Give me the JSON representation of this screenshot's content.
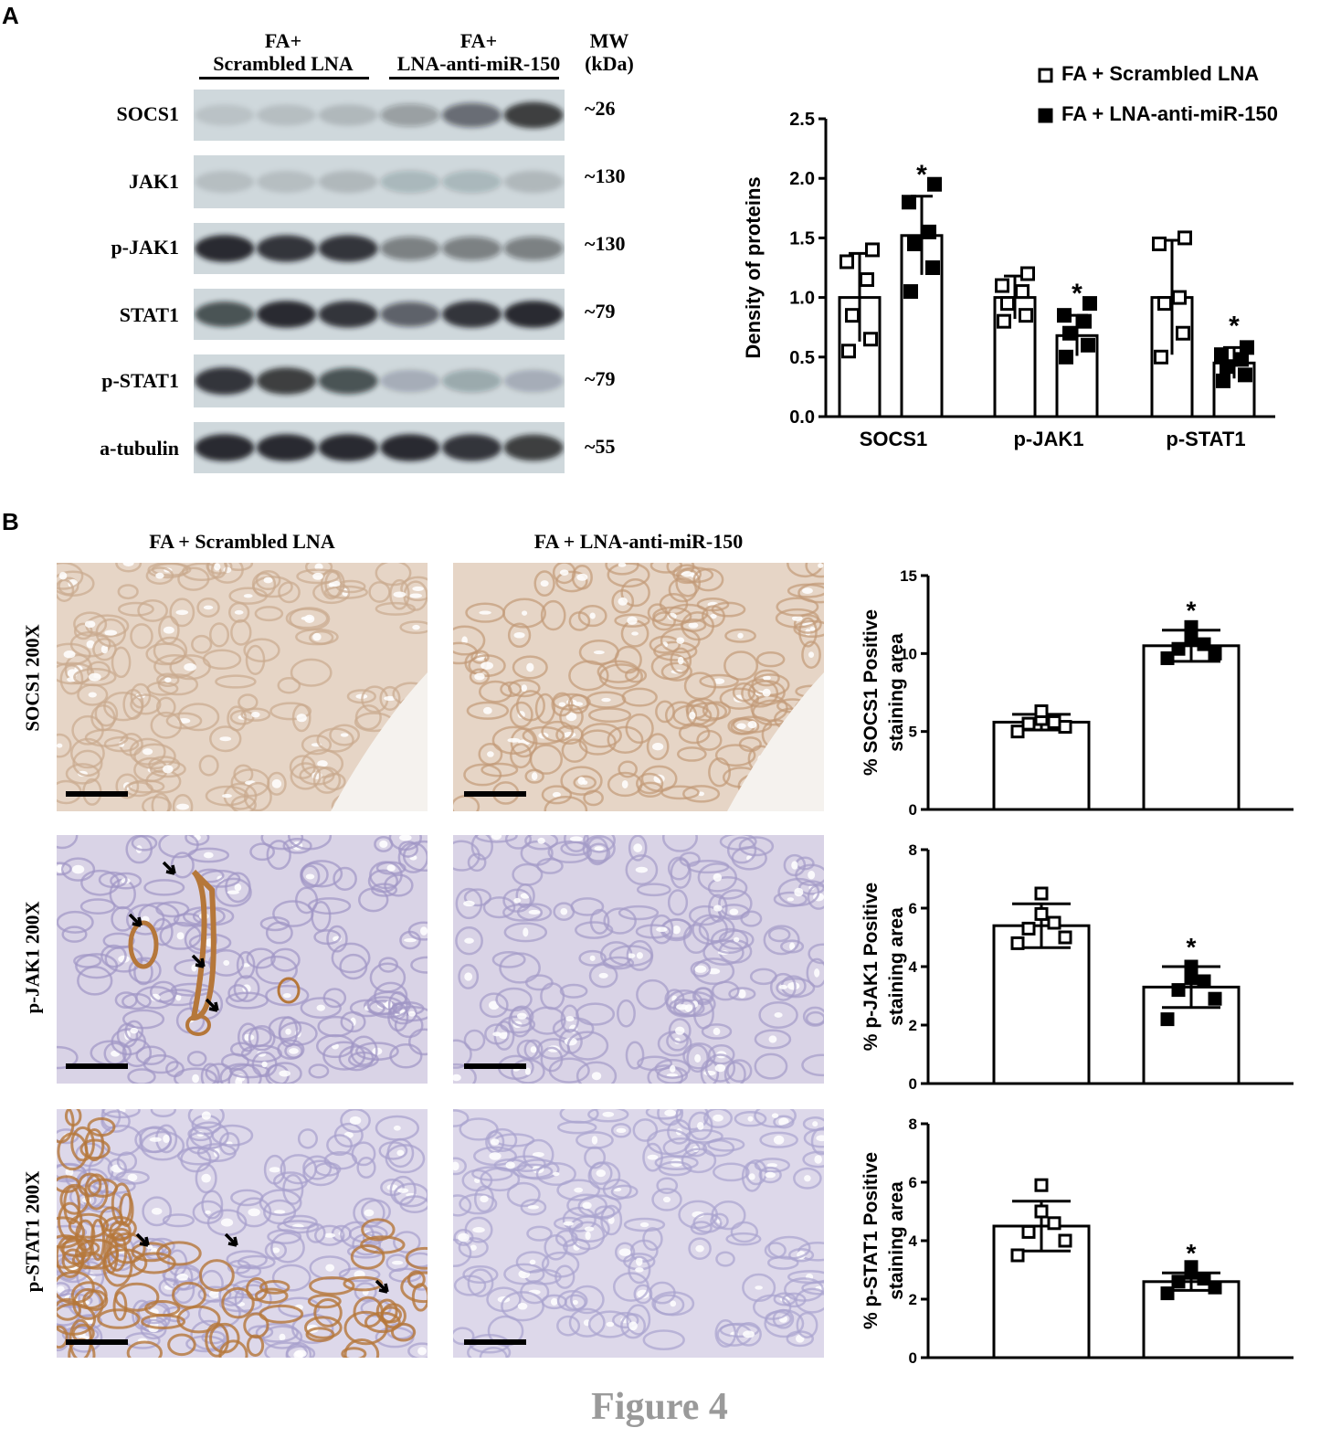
{
  "panel_a": {
    "letter": "A",
    "group1_line1": "FA+",
    "group1_line2": "Scrambled LNA",
    "group2_line1": "FA+",
    "group2_line2": "LNA-anti-miR-150",
    "mw_line1": "MW",
    "mw_line2": "(kDa)",
    "bands": [
      {
        "label": "SOCS1",
        "mw": "~26"
      },
      {
        "label": "JAK1",
        "mw": "~130"
      },
      {
        "label": "p-JAK1",
        "mw": "~130"
      },
      {
        "label": "STAT1",
        "mw": "~79"
      },
      {
        "label": "p-STAT1",
        "mw": "~79"
      },
      {
        "label": "a-tubulin",
        "mw": "~55"
      }
    ],
    "lane_intensity": [
      [
        0.1,
        0.12,
        0.15,
        0.3,
        0.55,
        0.8
      ],
      [
        0.12,
        0.12,
        0.15,
        0.18,
        0.18,
        0.15
      ],
      [
        0.9,
        0.85,
        0.85,
        0.45,
        0.45,
        0.45
      ],
      [
        0.7,
        0.9,
        0.85,
        0.6,
        0.85,
        0.9
      ],
      [
        0.85,
        0.8,
        0.7,
        0.2,
        0.25,
        0.2
      ],
      [
        0.9,
        0.9,
        0.9,
        0.9,
        0.85,
        0.8
      ]
    ]
  },
  "chart_a": {
    "type": "bar",
    "ylabel": "Density of proteins",
    "ylim": [
      0,
      2.5
    ],
    "yticks": [
      "0.0",
      "0.5",
      "1.0",
      "1.5",
      "2.0",
      "2.5"
    ],
    "categories": [
      "SOCS1",
      "p-JAK1",
      "p-STAT1"
    ],
    "legend": [
      "FA + Scrambled LNA",
      "FA + LNA-anti-miR-150"
    ],
    "series": [
      {
        "name": "FA + Scrambled LNA",
        "fill": "open",
        "values": [
          1.0,
          1.0,
          1.0
        ],
        "errors": [
          0.37,
          0.18,
          0.48
        ],
        "points": [
          [
            0.55,
            0.65,
            0.85,
            1.15,
            1.3,
            1.4
          ],
          [
            0.8,
            0.85,
            0.95,
            1.05,
            1.1,
            1.2
          ],
          [
            0.5,
            0.7,
            0.95,
            1.0,
            1.45,
            1.5
          ]
        ]
      },
      {
        "name": "FA + LNA-anti-miR-150",
        "fill": "solid",
        "values": [
          1.52,
          0.68,
          0.45
        ],
        "errors": [
          0.33,
          0.17,
          0.13
        ],
        "points": [
          [
            1.05,
            1.25,
            1.45,
            1.55,
            1.8,
            1.95
          ],
          [
            0.5,
            0.6,
            0.7,
            0.8,
            0.85,
            0.95
          ],
          [
            0.3,
            0.35,
            0.42,
            0.48,
            0.52,
            0.58
          ]
        ]
      }
    ],
    "significance": [
      "*",
      "*",
      "*"
    ]
  },
  "panel_b": {
    "letter": "B",
    "col1_title": "FA + Scrambled LNA",
    "col2_title": "FA + LNA-anti-miR-150",
    "row_labels": [
      "SOCS1 200X",
      "p-JAK1 200X",
      "p-STAT1 200X"
    ]
  },
  "chart_data": [
    {
      "type": "bar",
      "ylabel_line1": "% SOCS1 Positive",
      "ylabel_line2": "staining area",
      "ylim": [
        0,
        15
      ],
      "yticks": [
        "0",
        "5",
        "10",
        "15"
      ],
      "tick_values": [
        0,
        5,
        10,
        15
      ],
      "categories": [
        "FA + Scrambled LNA",
        "FA + LNA-anti-miR-150"
      ],
      "values": [
        5.6,
        10.5
      ],
      "errors": [
        0.5,
        1.0
      ],
      "points": [
        [
          5.0,
          5.3,
          5.5,
          5.6,
          5.8,
          6.3
        ],
        [
          9.7,
          10.0,
          10.3,
          10.6,
          11.0,
          11.7
        ]
      ],
      "significance": "*"
    },
    {
      "type": "bar",
      "ylabel_line1": "% p-JAK1 Positive",
      "ylabel_line2": "staining area",
      "ylim": [
        0,
        8
      ],
      "yticks": [
        "0",
        "2",
        "4",
        "6",
        "8"
      ],
      "tick_values": [
        0,
        2,
        4,
        6,
        8
      ],
      "categories": [
        "FA + Scrambled LNA",
        "FA + LNA-anti-miR-150"
      ],
      "values": [
        5.4,
        3.3
      ],
      "errors": [
        0.75,
        0.7
      ],
      "points": [
        [
          4.8,
          5.0,
          5.3,
          5.5,
          5.8,
          6.5
        ],
        [
          2.2,
          2.9,
          3.2,
          3.5,
          3.6,
          4.0
        ]
      ],
      "significance": "*"
    },
    {
      "type": "bar",
      "ylabel_line1": "% p-STAT1 Positive",
      "ylabel_line2": "staining area",
      "ylim": [
        0,
        8
      ],
      "yticks": [
        "0",
        "2",
        "4",
        "6",
        "8"
      ],
      "tick_values": [
        0,
        2,
        4,
        6,
        8
      ],
      "categories": [
        "FA + Scrambled LNA",
        "FA + LNA-anti-miR-150"
      ],
      "values": [
        4.5,
        2.6
      ],
      "errors": [
        0.85,
        0.3
      ],
      "points": [
        [
          3.5,
          4.0,
          4.3,
          4.6,
          5.0,
          5.9
        ],
        [
          2.2,
          2.4,
          2.6,
          2.7,
          2.9,
          3.1
        ]
      ],
      "significance": "*"
    }
  ],
  "colors": {
    "blot_bg": "#cfd8dc",
    "band": "#15191c",
    "socs1_tissue": "#e6d5c6",
    "pjak1_tissue": "#d9d3e6",
    "pstat1_tissue": "#ddd8ea",
    "dab_brown": "#b5773a"
  },
  "figure_caption": "Figure 4"
}
